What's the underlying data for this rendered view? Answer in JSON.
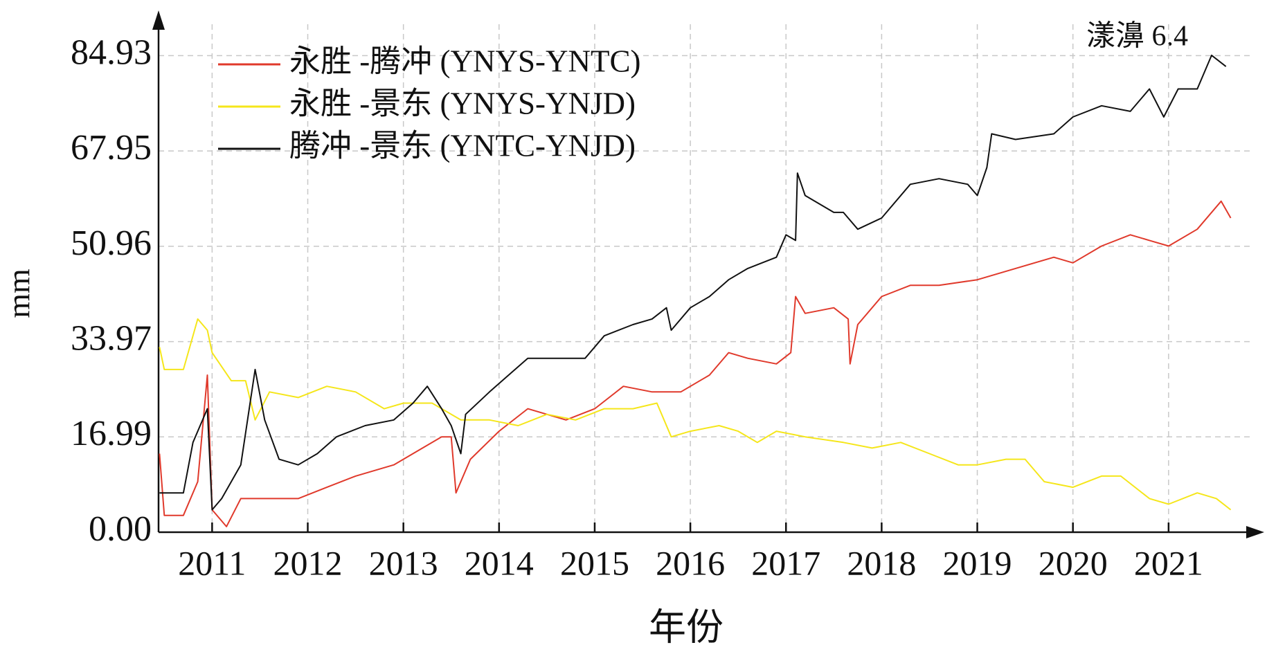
{
  "chart_data": {
    "type": "line",
    "annotation": "漾濞 6.4",
    "xlabel": "年份",
    "ylabel": "mm",
    "xlim": [
      2010.44,
      2022.0
    ],
    "xticks": [
      2011,
      2012,
      2013,
      2014,
      2015,
      2016,
      2017,
      2018,
      2019,
      2020,
      2021
    ],
    "ylim": [
      0,
      93
    ],
    "yticks": [
      {
        "value": 0,
        "label": "0.00"
      },
      16.99,
      33.97,
      50.96,
      67.95,
      84.93
    ],
    "grid": true,
    "legend": "upper left",
    "series": [
      {
        "name": "永胜 -腾冲 (YNYS-YNTC)",
        "color": "#e0392b",
        "x": [
          2010.45,
          2010.5,
          2010.7,
          2010.85,
          2010.95,
          2011.0,
          2011.15,
          2011.3,
          2011.6,
          2011.9,
          2012.2,
          2012.5,
          2012.9,
          2013.2,
          2013.4,
          2013.5,
          2013.55,
          2013.7,
          2014.0,
          2014.3,
          2014.5,
          2014.7,
          2015.0,
          2015.3,
          2015.6,
          2015.9,
          2016.2,
          2016.4,
          2016.6,
          2016.9,
          2017.05,
          2017.1,
          2017.2,
          2017.5,
          2017.65,
          2017.67,
          2017.75,
          2018.0,
          2018.3,
          2018.6,
          2019.0,
          2019.4,
          2019.8,
          2020.0,
          2020.3,
          2020.6,
          2020.8,
          2021.0,
          2021.3,
          2021.55,
          2021.65
        ],
        "values": [
          14,
          3,
          3,
          9,
          28,
          4,
          1,
          6,
          6,
          6,
          8,
          10,
          12,
          15,
          17,
          17,
          7,
          13,
          18,
          22,
          21,
          20,
          22,
          26,
          25,
          25,
          28,
          32,
          31,
          30,
          32,
          42,
          39,
          40,
          38,
          30,
          37,
          42,
          44,
          44,
          45,
          47,
          49,
          48,
          51,
          53,
          52,
          51,
          54,
          59,
          56
        ]
      },
      {
        "name": "永胜 -景东 (YNYS-YNJD)",
        "color": "#f5e61a",
        "x": [
          2010.45,
          2010.5,
          2010.7,
          2010.85,
          2010.95,
          2011.0,
          2011.2,
          2011.35,
          2011.45,
          2011.6,
          2011.9,
          2012.2,
          2012.5,
          2012.8,
          2013.0,
          2013.3,
          2013.6,
          2013.9,
          2014.2,
          2014.5,
          2014.8,
          2015.1,
          2015.4,
          2015.65,
          2015.8,
          2016.0,
          2016.3,
          2016.5,
          2016.7,
          2016.9,
          2017.2,
          2017.6,
          2017.9,
          2018.2,
          2018.5,
          2018.8,
          2019.0,
          2019.3,
          2019.5,
          2019.7,
          2020.0,
          2020.3,
          2020.5,
          2020.8,
          2021.0,
          2021.3,
          2021.5,
          2021.65
        ],
        "values": [
          33,
          29,
          29,
          38,
          36,
          32,
          27,
          27,
          20,
          25,
          24,
          26,
          25,
          22,
          23,
          23,
          20,
          20,
          19,
          21,
          20,
          22,
          22,
          23,
          17,
          18,
          19,
          18,
          16,
          18,
          17,
          16,
          15,
          16,
          14,
          12,
          12,
          13,
          13,
          9,
          8,
          10,
          10,
          6,
          5,
          7,
          6,
          4
        ]
      },
      {
        "name": "腾冲 -景东 (YNTC-YNJD)",
        "color": "#111111",
        "x": [
          2010.45,
          2010.7,
          2010.8,
          2010.95,
          2011.0,
          2011.1,
          2011.3,
          2011.45,
          2011.55,
          2011.7,
          2011.9,
          2012.1,
          2012.3,
          2012.6,
          2012.9,
          2013.1,
          2013.25,
          2013.4,
          2013.5,
          2013.6,
          2013.65,
          2013.9,
          2014.1,
          2014.3,
          2014.6,
          2014.9,
          2015.1,
          2015.4,
          2015.6,
          2015.75,
          2015.8,
          2016.0,
          2016.2,
          2016.4,
          2016.6,
          2016.9,
          2017.0,
          2017.1,
          2017.12,
          2017.2,
          2017.5,
          2017.6,
          2017.75,
          2018.0,
          2018.3,
          2018.6,
          2018.9,
          2019.0,
          2019.1,
          2019.15,
          2019.4,
          2019.8,
          2020.0,
          2020.3,
          2020.6,
          2020.8,
          2020.95,
          2021.1,
          2021.3,
          2021.45,
          2021.6
        ],
        "values": [
          7,
          7,
          16,
          22,
          4,
          6,
          12,
          29,
          20,
          13,
          12,
          14,
          17,
          19,
          20,
          23,
          26,
          22,
          19,
          14,
          21,
          25,
          28,
          31,
          31,
          31,
          35,
          37,
          38,
          40,
          36,
          40,
          42,
          45,
          47,
          49,
          53,
          52,
          64,
          60,
          57,
          57,
          54,
          56,
          62,
          63,
          62,
          60,
          65,
          71,
          70,
          71,
          74,
          76,
          75,
          79,
          74,
          79,
          79,
          85,
          83
        ]
      }
    ]
  }
}
